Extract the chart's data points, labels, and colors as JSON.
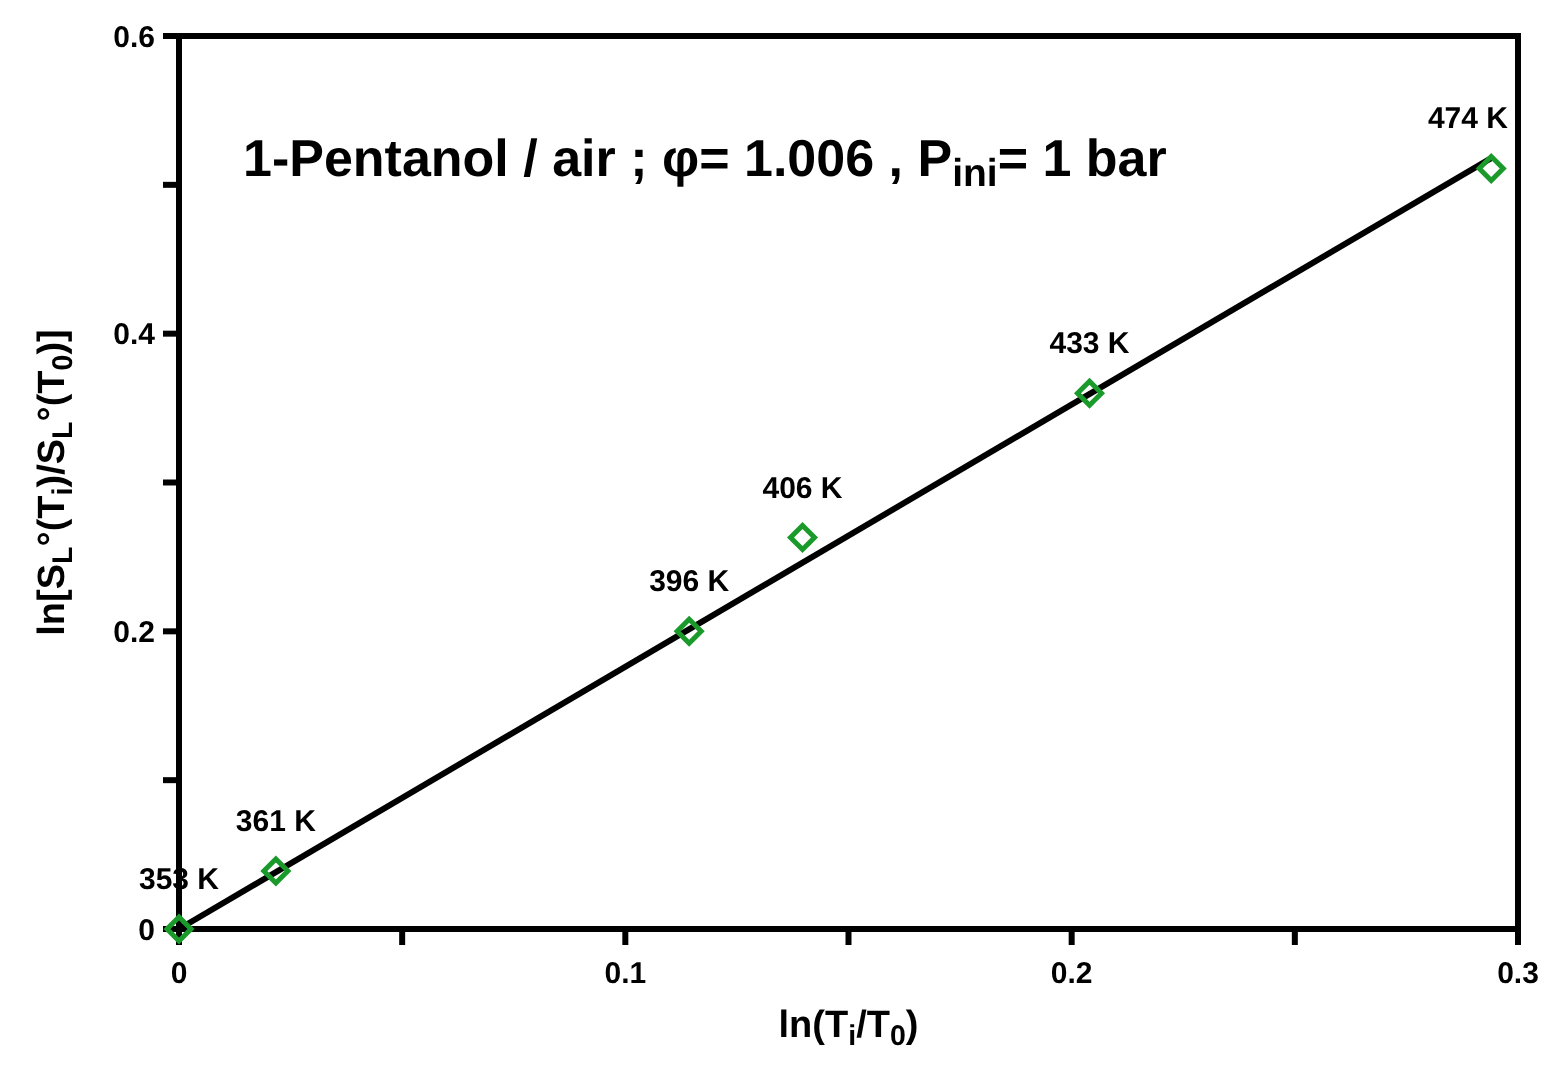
{
  "chart_data": {
    "type": "scatter",
    "title": "1-Pentanol / air ; φ= 1.006 , P$_{ini}$= 1 bar",
    "xlabel": "ln(T$_{i}$/T$_{0}$)",
    "ylabel": "ln[S$_{L}$°(T$_{i}$)/S$_{L}$°(T$_{0}$)]",
    "xlim": [
      0,
      0.3
    ],
    "ylim": [
      0,
      0.6
    ],
    "xticks": [
      0,
      {
        "value": 0.05,
        "label": null
      },
      0.1,
      {
        "value": 0.15,
        "label": null
      },
      0.2,
      {
        "value": 0.25,
        "label": null
      },
      0.3
    ],
    "yticks": [
      0,
      {
        "value": 0.1,
        "label": null
      },
      0.2,
      {
        "value": 0.3,
        "label": null
      },
      0.4,
      {
        "value": 0.5,
        "label": null
      },
      0.6
    ],
    "grid": false,
    "marker": "diamond",
    "series": [
      {
        "color": "#1a9a2a",
        "x": [
          0,
          0.0217,
          0.1143,
          0.1397,
          0.204,
          0.294
        ],
        "values": [
          0,
          0.039,
          0.2,
          0.263,
          0.36,
          0.511
        ]
      },
      {
        "type": "line",
        "color": "#000000",
        "marker": "none",
        "line_style": "solid",
        "x": [
          0,
          0.294
        ],
        "values": [
          0,
          0.518
        ]
      }
    ],
    "annotations": [
      {
        "text": "353 K",
        "x": 0,
        "y": 0
      },
      {
        "text": "361 K",
        "x": 0.0217,
        "y": 0.039
      },
      {
        "text": "396 K",
        "x": 0.1143,
        "y": 0.2
      },
      {
        "text": "406 K",
        "x": 0.1397,
        "y": 0.263
      },
      {
        "text": "433 K",
        "x": 0.204,
        "y": 0.36
      },
      {
        "text": "474 K",
        "x": 0.294,
        "y": 0.511
      }
    ]
  }
}
